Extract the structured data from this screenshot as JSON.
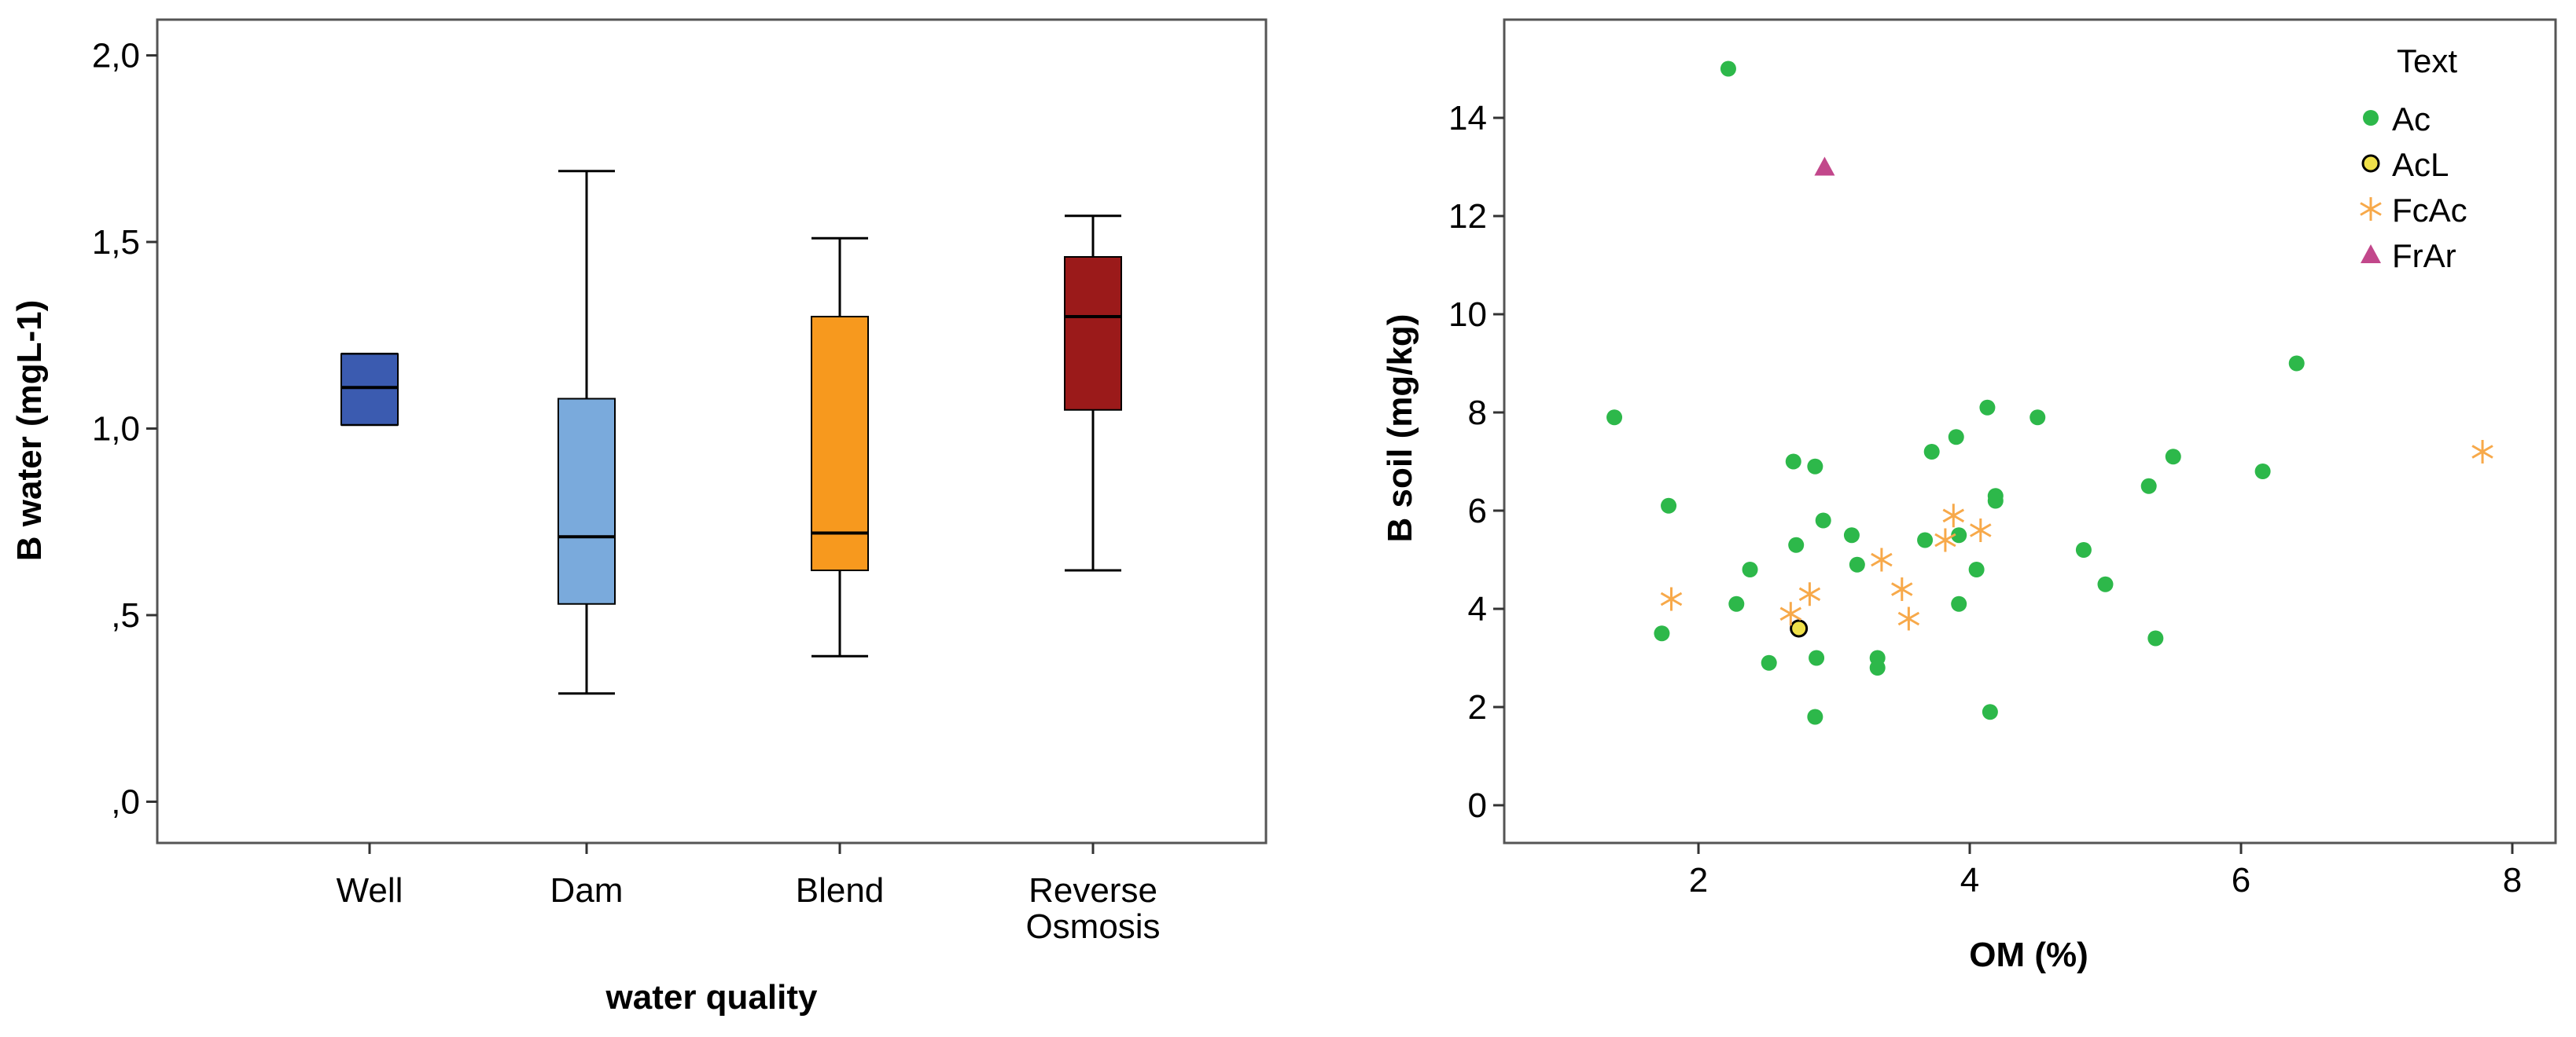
{
  "chart_data": [
    {
      "type": "box",
      "xlabel": "water quality",
      "ylabel": "B water (mgL-1)",
      "ylim": [
        -0.1,
        2.1
      ],
      "yticks": [
        {
          "value": 0.0,
          "label": ",0"
        },
        {
          "value": 0.5,
          "label": ",5"
        },
        {
          "value": 1.0,
          "label": "1,0"
        },
        {
          "value": 1.5,
          "label": "1,5"
        },
        {
          "value": 2.0,
          "label": "2,0"
        }
      ],
      "categories": [
        {
          "label": "Well",
          "label_lines": [
            "Well"
          ],
          "min": 1.01,
          "q1": 1.01,
          "median": 1.11,
          "q3": 1.2,
          "max": 1.2,
          "color": "#3b5bb0"
        },
        {
          "label": "Dam",
          "label_lines": [
            "Dam"
          ],
          "min": 0.29,
          "q1": 0.53,
          "median": 0.71,
          "q3": 1.08,
          "max": 1.69,
          "color": "#7aaadc"
        },
        {
          "label": "Blend",
          "label_lines": [
            "Blend"
          ],
          "min": 0.39,
          "q1": 0.62,
          "median": 0.72,
          "q3": 1.3,
          "max": 1.51,
          "color": "#f7991e"
        },
        {
          "label": "Reverse Osmosis",
          "label_lines": [
            "Reverse",
            "Osmosis"
          ],
          "min": 0.62,
          "q1": 1.05,
          "median": 1.3,
          "q3": 1.46,
          "max": 1.57,
          "color": "#9b1a1a"
        }
      ]
    },
    {
      "type": "scatter",
      "xlabel": "OM (%)",
      "ylabel": "B soil (mg/kg)",
      "xlim": [
        0.85,
        8.4
      ],
      "ylim": [
        -0.8,
        15.4
      ],
      "xticks": [
        {
          "value": 2,
          "label": "2"
        },
        {
          "value": 4,
          "label": "4"
        },
        {
          "value": 6,
          "label": "6"
        },
        {
          "value": 8,
          "label": "8"
        }
      ],
      "yticks": [
        {
          "value": 0,
          "label": "0"
        },
        {
          "value": 2,
          "label": "2"
        },
        {
          "value": 4,
          "label": "4"
        },
        {
          "value": 6,
          "label": "6"
        },
        {
          "value": 8,
          "label": "8"
        },
        {
          "value": 10,
          "label": "10"
        },
        {
          "value": 12,
          "label": "12"
        },
        {
          "value": 14,
          "label": "14"
        }
      ],
      "legend_title": "Text",
      "legend_position": "top-right",
      "series": [
        {
          "name": "Ac",
          "marker": "circle",
          "color": "#2db84a",
          "points": [
            [
              2.22,
              15.0
            ],
            [
              1.38,
              7.9
            ],
            [
              1.78,
              6.1
            ],
            [
              1.73,
              3.5
            ],
            [
              2.28,
              4.1
            ],
            [
              2.38,
              4.8
            ],
            [
              2.52,
              2.9
            ],
            [
              2.7,
              7.0
            ],
            [
              2.72,
              5.3
            ],
            [
              2.86,
              6.9
            ],
            [
              2.92,
              5.8
            ],
            [
              2.86,
              1.8
            ],
            [
              2.87,
              3.0
            ],
            [
              3.13,
              5.5
            ],
            [
              3.17,
              4.9
            ],
            [
              3.32,
              3.0
            ],
            [
              3.32,
              2.8
            ],
            [
              3.67,
              5.4
            ],
            [
              3.72,
              7.2
            ],
            [
              3.9,
              7.5
            ],
            [
              3.92,
              5.5
            ],
            [
              3.92,
              4.1
            ],
            [
              4.05,
              4.8
            ],
            [
              4.13,
              8.1
            ],
            [
              4.15,
              1.9
            ],
            [
              4.19,
              6.3
            ],
            [
              4.19,
              6.2
            ],
            [
              4.5,
              7.9
            ],
            [
              4.84,
              5.2
            ],
            [
              5.0,
              4.5
            ],
            [
              5.32,
              6.5
            ],
            [
              5.37,
              3.4
            ],
            [
              5.5,
              7.1
            ],
            [
              6.16,
              6.8
            ],
            [
              6.41,
              9.0
            ]
          ]
        },
        {
          "name": "AcL",
          "marker": "circle-outline",
          "color": "#f0e14a",
          "points": [
            [
              2.74,
              3.6
            ]
          ]
        },
        {
          "name": "FcAc",
          "marker": "star",
          "color": "#f7a94a",
          "points": [
            [
              1.8,
              4.2
            ],
            [
              2.68,
              3.9
            ],
            [
              2.82,
              4.3
            ],
            [
              3.35,
              5.0
            ],
            [
              3.5,
              4.4
            ],
            [
              3.55,
              3.8
            ],
            [
              3.82,
              5.4
            ],
            [
              3.88,
              5.9
            ],
            [
              4.08,
              5.6
            ],
            [
              7.78,
              7.2
            ]
          ]
        },
        {
          "name": "FrAr",
          "marker": "triangle",
          "color": "#c2478b",
          "points": [
            [
              2.93,
              13.0
            ]
          ]
        }
      ]
    }
  ]
}
